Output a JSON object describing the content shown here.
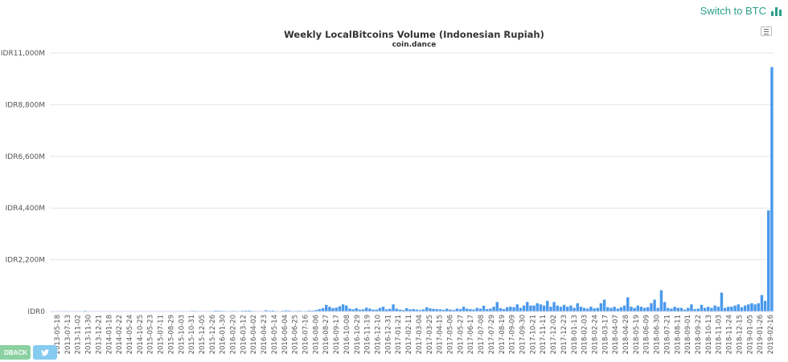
{
  "switch": {
    "label": "Switch to BTC",
    "icon": "bar-chart-icon",
    "color": "#2aa08a"
  },
  "menu": {
    "icon": "hamburger-menu-icon"
  },
  "feedback": {
    "label": "DBACK"
  },
  "tweet": {
    "icon": "twitter-bird-icon"
  },
  "chart_data": {
    "type": "bar",
    "title": "Weekly LocalBitcoins Volume (Indonesian Rupiah)",
    "subtitle": "coin.dance",
    "bar_color": "#4a99ec",
    "ylim": [
      0,
      11000
    ],
    "ytick_labels": [
      "IDR0",
      "IDR2,200M",
      "IDR4,400M",
      "IDR6,600M",
      "IDR8,800M",
      "IDR11,000M"
    ],
    "xtick_labels": [
      "2013-05-18",
      "2013-07-13",
      "2013-11-02",
      "2013-11-30",
      "2013-12-21",
      "2014-01-18",
      "2014-02-22",
      "2014-05-24",
      "2014-10-25",
      "2015-05-23",
      "2015-07-11",
      "2015-08-29",
      "2015-10-03",
      "2015-10-31",
      "2015-12-05",
      "2015-12-26",
      "2016-01-30",
      "2016-02-20",
      "2016-03-12",
      "2016-04-02",
      "2016-04-23",
      "2016-05-14",
      "2016-06-04",
      "2016-06-25",
      "2016-07-16",
      "2016-08-06",
      "2016-08-27",
      "2016-09-17",
      "2016-10-08",
      "2016-10-29",
      "2016-11-19",
      "2016-12-10",
      "2016-12-31",
      "2017-01-21",
      "2017-02-11",
      "2017-03-04",
      "2017-03-25",
      "2017-04-15",
      "2017-05-06",
      "2017-05-27",
      "2017-06-17",
      "2017-07-08",
      "2017-07-29",
      "2017-08-19",
      "2017-09-09",
      "2017-09-30",
      "2017-10-21",
      "2017-11-11",
      "2017-12-02",
      "2017-12-23",
      "2018-01-13",
      "2018-02-03",
      "2018-02-24",
      "2018-03-17",
      "2018-04-07",
      "2018-04-28",
      "2018-05-19",
      "2018-06-09",
      "2018-06-30",
      "2018-07-21",
      "2018-08-11",
      "2018-09-01",
      "2018-09-22",
      "2018-10-13",
      "2018-11-03",
      "2018-11-24",
      "2018-12-15",
      "2019-01-05",
      "2019-01-26",
      "2019-02-16"
    ],
    "values": [
      10,
      5,
      8,
      5,
      20,
      10,
      5,
      12,
      8,
      5,
      30,
      8,
      10,
      5,
      5,
      8,
      5,
      6,
      5,
      8,
      5,
      6,
      5,
      8,
      5,
      5,
      5,
      8,
      10,
      5,
      5,
      5,
      6,
      10,
      15,
      12,
      10,
      8,
      20,
      15,
      10,
      8,
      25,
      20,
      15,
      10,
      10,
      15,
      20,
      35,
      30,
      25,
      20,
      15,
      25,
      20,
      15,
      30,
      35,
      40,
      25,
      20,
      15,
      10,
      50,
      30,
      40,
      20,
      15,
      30,
      45,
      35,
      20,
      25,
      30,
      20,
      25,
      40,
      35,
      60,
      100,
      140,
      280,
      200,
      140,
      160,
      220,
      300,
      250,
      120,
      90,
      140,
      80,
      90,
      160,
      120,
      80,
      80,
      150,
      200,
      90,
      110,
      300,
      120,
      80,
      60,
      140,
      90,
      100,
      80,
      60,
      90,
      180,
      130,
      110,
      100,
      90,
      70,
      120,
      80,
      60,
      120,
      100,
      200,
      120,
      100,
      80,
      150,
      120,
      240,
      100,
      120,
      200,
      400,
      140,
      100,
      180,
      200,
      180,
      300,
      150,
      250,
      400,
      250,
      250,
      350,
      300,
      250,
      450,
      200,
      400,
      250,
      200,
      280,
      200,
      250,
      150,
      350,
      200,
      150,
      120,
      200,
      130,
      150,
      350,
      500,
      180,
      150,
      200,
      120,
      180,
      250,
      600,
      200,
      150,
      250,
      200,
      150,
      180,
      350,
      500,
      150,
      900,
      400,
      150,
      120,
      200,
      150,
      150,
      80,
      150,
      300,
      100,
      120,
      280,
      150,
      200,
      150,
      250,
      200,
      800,
      150,
      200,
      200,
      250,
      300,
      180,
      250,
      300,
      350,
      300,
      350,
      700,
      450,
      4300,
      10400
    ]
  }
}
